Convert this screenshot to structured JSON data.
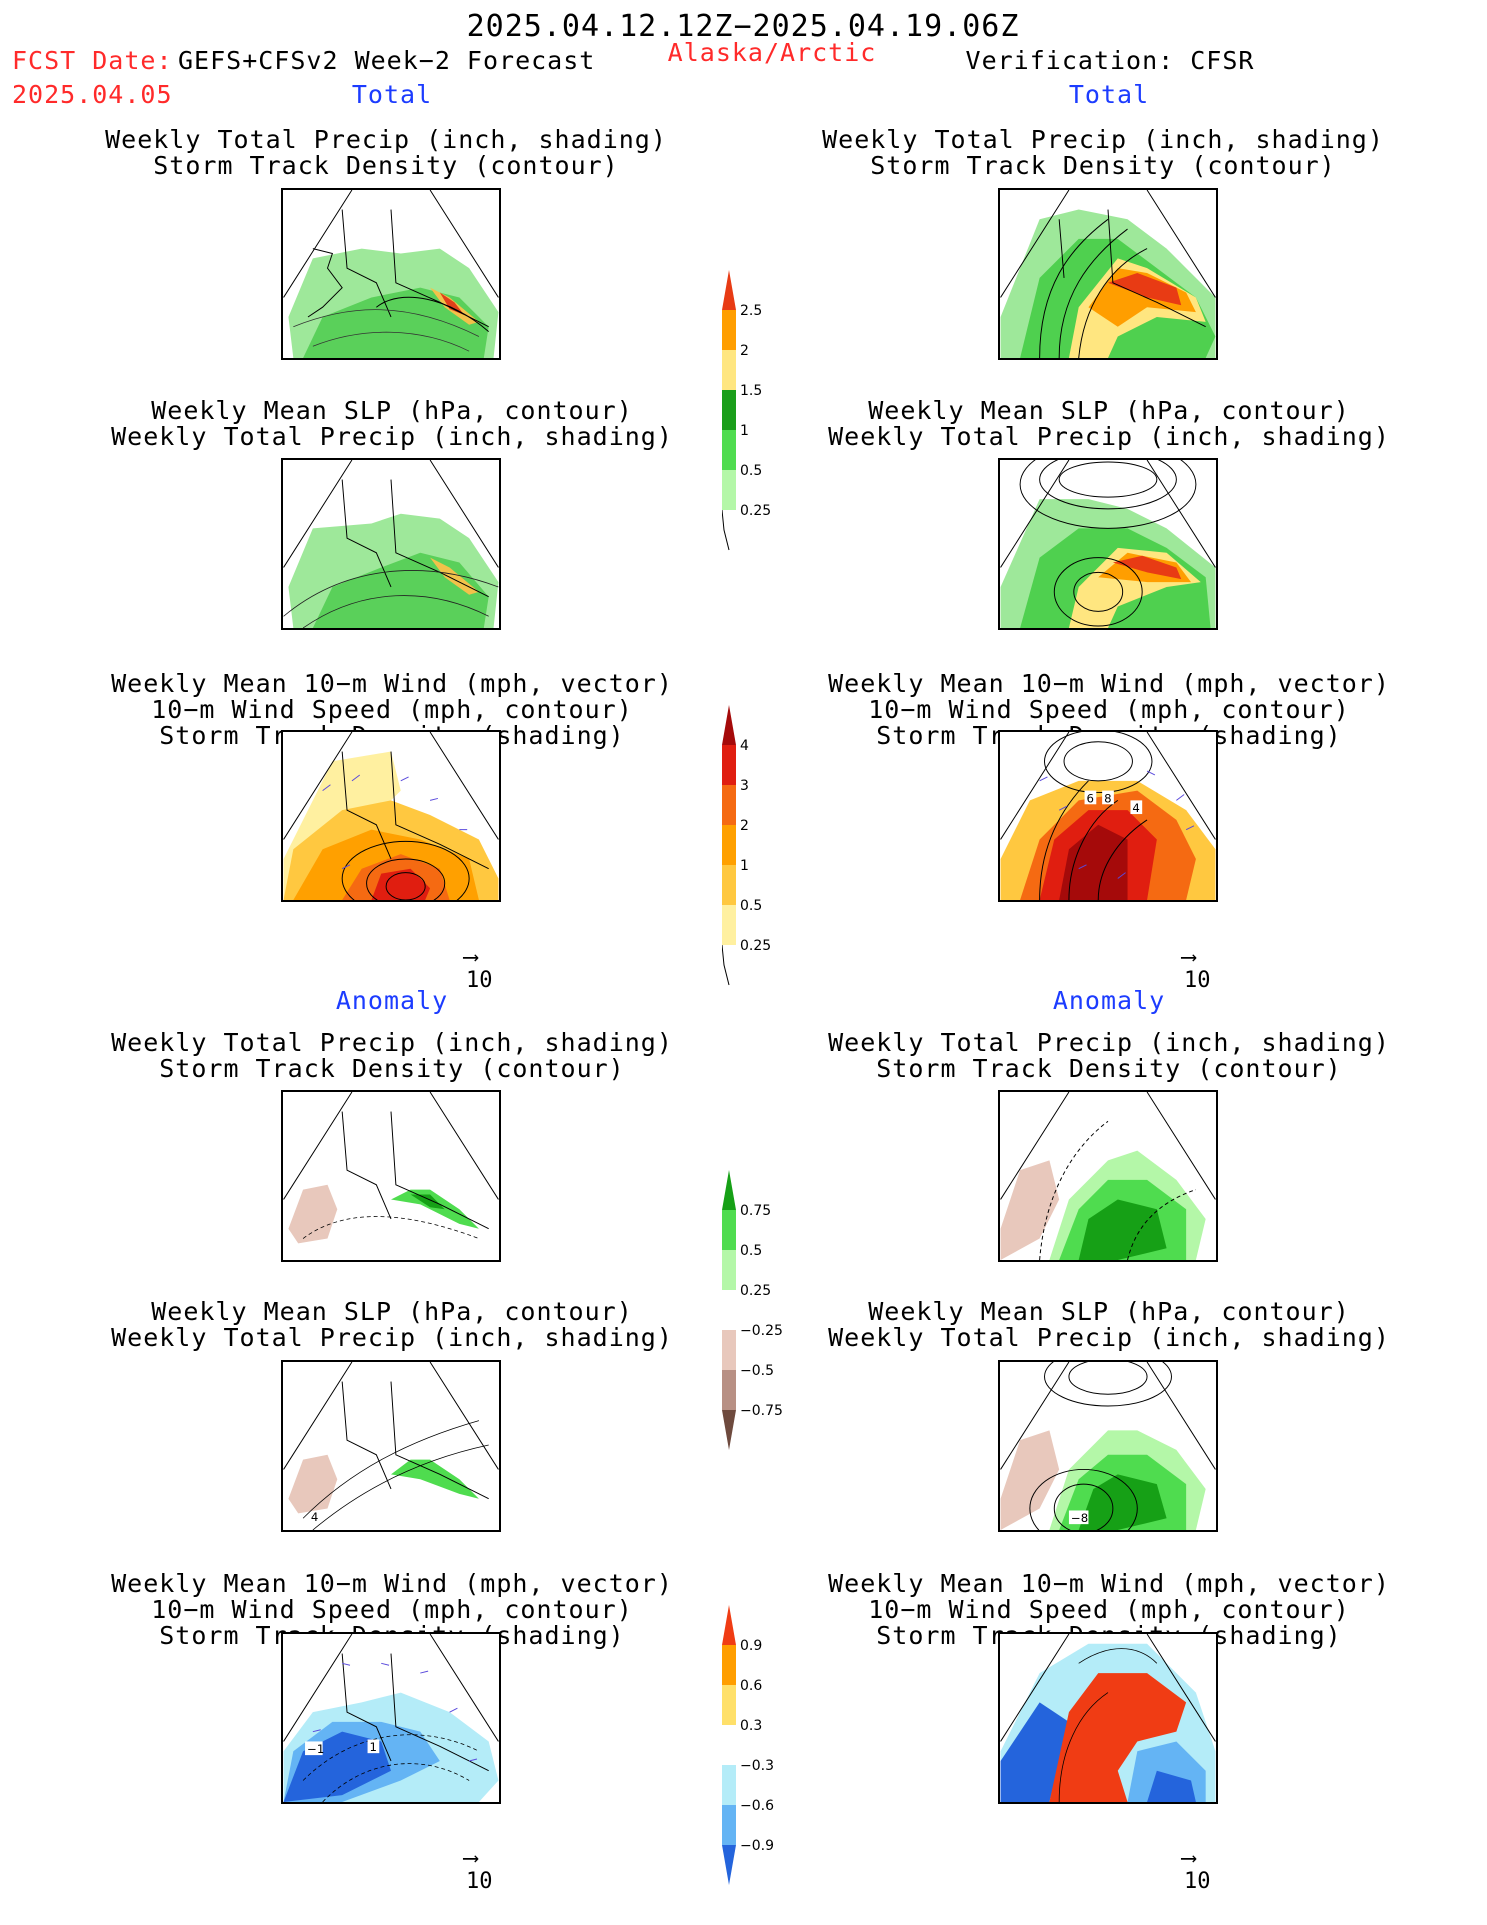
{
  "header": {
    "title": "2025.04.12.12Z−2025.04.19.06Z",
    "fcst_label": "FCST Date:",
    "fcst_model": "GEFS+CFSv2 Week−2 Forecast",
    "fcst_date": "2025.04.05",
    "region": "Alaska/Arctic",
    "verification": "Verification: CFSR"
  },
  "sections": {
    "total": "Total",
    "anomaly": "Anomaly"
  },
  "panel_titles": {
    "precip_storm": [
      "Weekly Total Precip (inch, shading)",
      "Storm Track Density (contour)"
    ],
    "slp_precip": [
      "Weekly Mean SLP (hPa, contour)",
      "Weekly Total Precip (inch, shading)"
    ],
    "wind_storm": [
      "Weekly Mean 10−m Wind (mph, vector)",
      "10−m Wind Speed (mph, contour)",
      "Storm Track Density (shading)"
    ]
  },
  "vector_ref": "10",
  "contour_labels": {
    "wind_total_right": [
      "6",
      "8",
      "4"
    ],
    "slp_anom_left": "4",
    "slp_anom_right": "−8",
    "wind_anom_left": [
      "−1",
      "1"
    ]
  },
  "colorbars": {
    "precip_total": {
      "labels": [
        "2.5",
        "2",
        "1.5",
        "1",
        "0.5",
        "0.25"
      ],
      "colors": [
        "#e83b14",
        "#ff9e00",
        "#ffe680",
        "#1a9e1a",
        "#4fdc4f",
        "#b4f7a8"
      ]
    },
    "storm_total": {
      "labels": [
        "4",
        "3",
        "2",
        "1",
        "0.5",
        "0.25"
      ],
      "colors": [
        "#a50a0a",
        "#e01e10",
        "#f56a12",
        "#ffa000",
        "#ffc840",
        "#fff0a0"
      ]
    },
    "precip_anom": {
      "labels": [
        "0.75",
        "0.5",
        "0.25",
        "−0.25",
        "−0.5",
        "−0.75"
      ],
      "colors": [
        "#16a016",
        "#4fdc4f",
        "#b4f7a8",
        "#e8c8bc",
        "#b89084",
        "#6e4a3e"
      ]
    },
    "storm_anom": {
      "labels": [
        "0.9",
        "0.6",
        "0.3",
        "−0.3",
        "−0.6",
        "−0.9"
      ],
      "colors": [
        "#f03c14",
        "#ff9e00",
        "#ffe06a",
        "#b4ecf8",
        "#64b4f4",
        "#2464dc"
      ]
    }
  }
}
